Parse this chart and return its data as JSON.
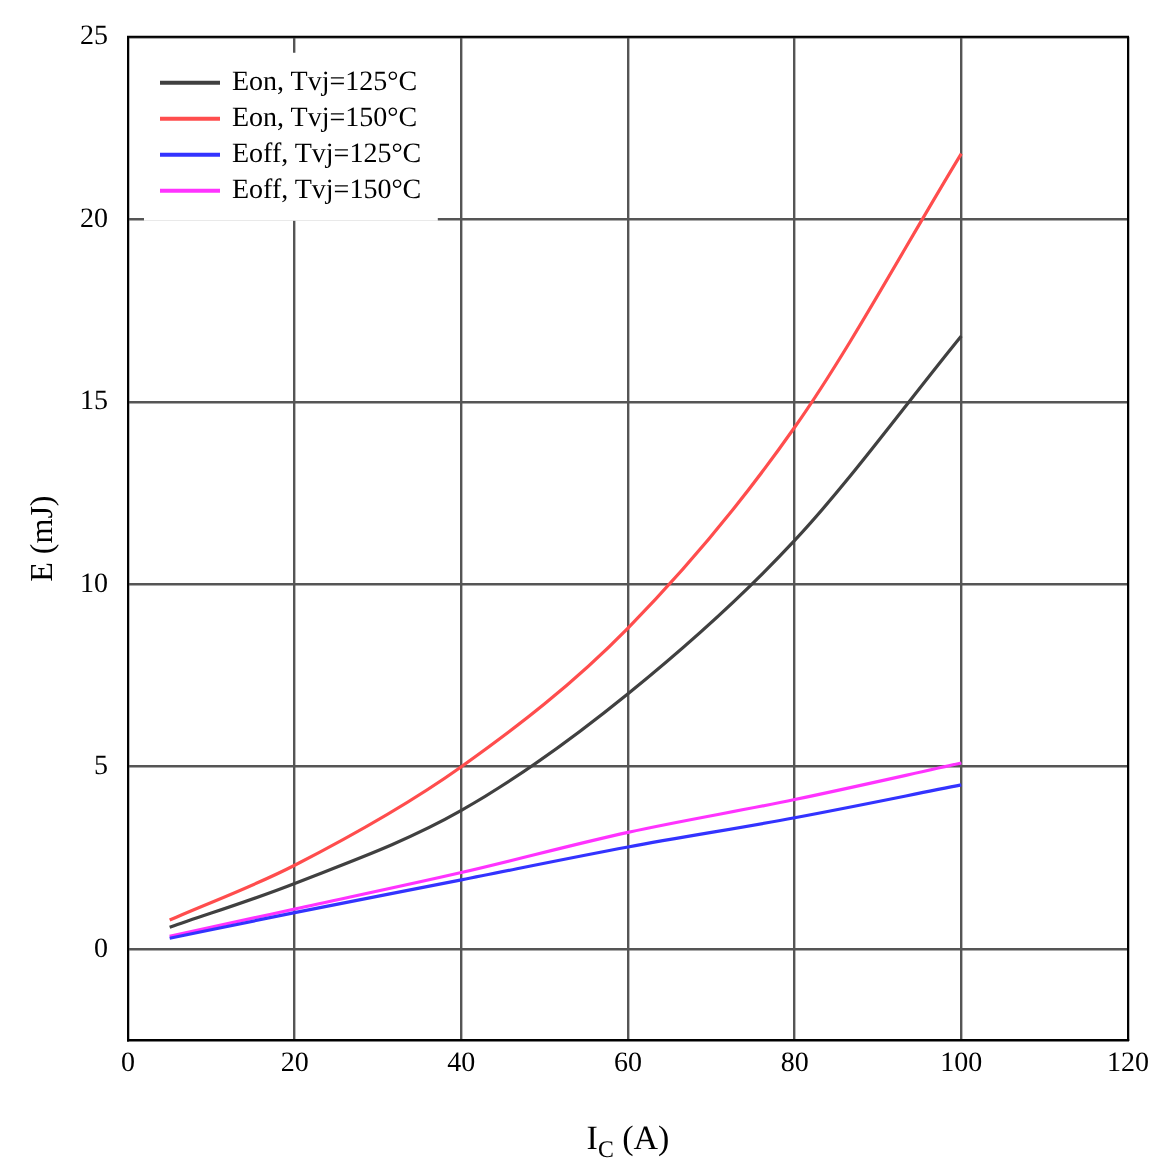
{
  "chart_data": {
    "type": "line",
    "xlabel": "I$_{C}$ (A)",
    "ylabel": "E (mJ)",
    "x": [
      5,
      20,
      40,
      60,
      80,
      100
    ],
    "series": [
      {
        "name": "Eon, Tvj=125°C",
        "color": "#404040",
        "values": [
          0.6,
          1.8,
          3.8,
          7,
          11.2,
          16.8
        ]
      },
      {
        "name": "Eon, Tvj=150°C",
        "color": "#ff4d4d",
        "values": [
          0.8,
          2.3,
          5,
          8.8,
          14.3,
          21.8
        ]
      },
      {
        "name": "Eoff, Tvj=125°C",
        "color": "#3333ff",
        "values": [
          0.3,
          1,
          1.9,
          2.8,
          3.6,
          4.5
        ]
      },
      {
        "name": "Eoff, Tvj=150°C",
        "color": "#ff33ff",
        "values": [
          0.35,
          1.1,
          2.1,
          3.2,
          4.1,
          5.1
        ]
      }
    ],
    "xlim": [
      0,
      120
    ],
    "xticks": [
      0,
      20,
      40,
      60,
      80,
      100,
      120
    ],
    "ylim": [
      -2.5,
      25
    ],
    "yticks": [
      0,
      5,
      10,
      15,
      20,
      25
    ],
    "grid": true,
    "legend": "top left",
    "marker": "none",
    "line_style": "solid"
  }
}
